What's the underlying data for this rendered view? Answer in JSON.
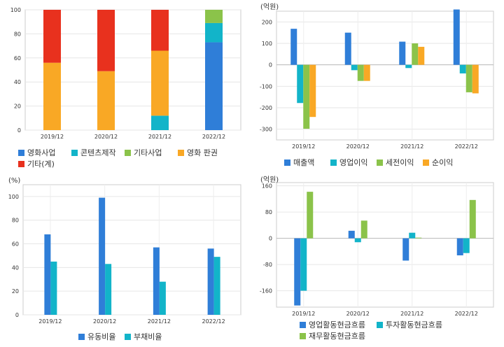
{
  "chart_data": [
    {
      "type": "bar",
      "stacked": true,
      "unit": "",
      "categories": [
        "2019/12",
        "2020/12",
        "2021/12",
        "2022/12"
      ],
      "ylim": [
        0,
        100
      ],
      "yticks": [
        0,
        20,
        40,
        60,
        80,
        100
      ],
      "grid": true,
      "legend_position": "bottom",
      "series": [
        {
          "name": "영화사업",
          "color": "#2f7ed8",
          "values": [
            0,
            0,
            0,
            73
          ]
        },
        {
          "name": "콘텐츠제작",
          "color": "#12b4c9",
          "values": [
            0,
            0,
            12,
            16
          ]
        },
        {
          "name": "기타사업",
          "color": "#8bc34a",
          "values": [
            0,
            0,
            0,
            11
          ]
        },
        {
          "name": "영화 판권",
          "color": "#f9a825",
          "values": [
            56,
            49,
            54,
            0
          ]
        },
        {
          "name": "기타(계)",
          "color": "#e8311e",
          "values": [
            44,
            51,
            34,
            0
          ]
        }
      ]
    },
    {
      "type": "bar",
      "stacked": false,
      "unit": "(억원)",
      "categories": [
        "2019/12",
        "2020/12",
        "2021/12",
        "2022/12"
      ],
      "ylim": [
        -350,
        250
      ],
      "yticks": [
        -300,
        -200,
        -100,
        0,
        100,
        200
      ],
      "grid": true,
      "legend_position": "bottom",
      "series": [
        {
          "name": "매출액",
          "color": "#2f7ed8",
          "values": [
            168,
            150,
            108,
            258
          ]
        },
        {
          "name": "영업이익",
          "color": "#12b4c9",
          "values": [
            -178,
            -25,
            -15,
            -40
          ]
        },
        {
          "name": "세전이익",
          "color": "#8bc34a",
          "values": [
            -298,
            -75,
            100,
            -128
          ]
        },
        {
          "name": "순이익",
          "color": "#f9a825",
          "values": [
            -243,
            -75,
            84,
            -133
          ]
        }
      ]
    },
    {
      "type": "bar",
      "stacked": false,
      "unit": "(%)",
      "categories": [
        "2019/12",
        "2020/12",
        "2021/12",
        "2022/12"
      ],
      "ylim": [
        0,
        110
      ],
      "yticks": [
        0,
        20,
        40,
        60,
        80,
        100
      ],
      "grid": true,
      "legend_position": "bottom",
      "series": [
        {
          "name": "유동비율",
          "color": "#2f7ed8",
          "values": [
            68,
            99,
            57,
            56
          ]
        },
        {
          "name": "부채비율",
          "color": "#12b4c9",
          "values": [
            45,
            43,
            28,
            49
          ]
        }
      ]
    },
    {
      "type": "bar",
      "stacked": false,
      "unit": "(억원)",
      "categories": [
        "2019/12",
        "2020/12",
        "2021/12",
        "2022/12"
      ],
      "ylim": [
        -210,
        170
      ],
      "yticks": [
        -160,
        -80,
        0,
        80,
        160
      ],
      "grid": true,
      "legend_position": "bottom",
      "series": [
        {
          "name": "영업활동현금흐름",
          "color": "#2f7ed8",
          "values": [
            -205,
            23,
            -68,
            -52
          ]
        },
        {
          "name": "투자활동현금흐름",
          "color": "#12b4c9",
          "values": [
            -160,
            -12,
            17,
            -45
          ]
        },
        {
          "name": "재무활동현금흐름",
          "color": "#8bc34a",
          "values": [
            142,
            54,
            2,
            117
          ]
        }
      ]
    }
  ]
}
